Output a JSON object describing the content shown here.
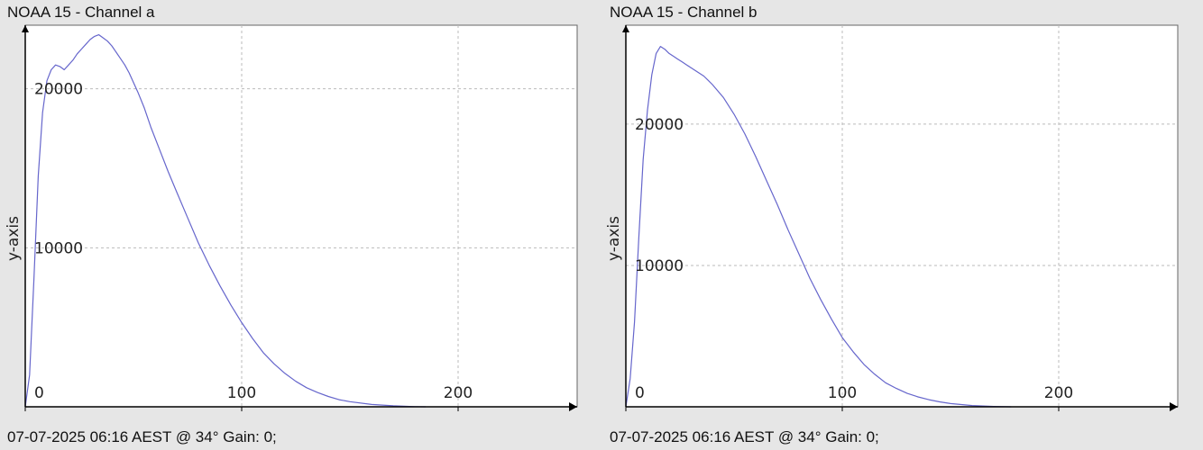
{
  "colors": {
    "background": "#e6e6e6",
    "plot_bg": "#ffffff",
    "line": "#6666cc",
    "grid": "#bbbbbb",
    "axis": "#000000"
  },
  "chart_data": [
    {
      "type": "line",
      "title": "NOAA 15 - Channel a",
      "footer": "07-07-2025 06:16 AEST @ 34° Gain: 0;",
      "xlabel": "",
      "ylabel": "y-axis",
      "xlim": [
        0,
        255
      ],
      "ylim": [
        0,
        24000
      ],
      "grid": true,
      "x_ticks": [
        0,
        100,
        200
      ],
      "y_ticks": [
        10000,
        20000
      ],
      "series": [
        {
          "x": [
            0,
            2,
            4,
            6,
            8,
            10,
            12,
            14,
            16,
            18,
            20,
            22,
            24,
            26,
            28,
            30,
            32,
            34,
            36,
            38,
            40,
            42,
            44,
            46,
            48,
            50,
            52,
            55,
            58,
            62,
            66,
            70,
            75,
            80,
            85,
            90,
            95,
            100,
            105,
            110,
            115,
            120,
            125,
            130,
            135,
            140,
            145,
            150,
            160,
            170,
            180,
            185
          ],
          "y": [
            0,
            2000,
            8000,
            14500,
            18500,
            20500,
            21200,
            21500,
            21400,
            21200,
            21500,
            21800,
            22200,
            22500,
            22800,
            23100,
            23300,
            23400,
            23200,
            23000,
            22700,
            22300,
            21900,
            21500,
            21000,
            20400,
            19800,
            18800,
            17600,
            16200,
            14800,
            13500,
            11900,
            10300,
            8900,
            7600,
            6400,
            5300,
            4300,
            3400,
            2700,
            2100,
            1600,
            1200,
            900,
            650,
            450,
            320,
            150,
            60,
            10,
            0
          ]
        }
      ]
    },
    {
      "type": "line",
      "title": "NOAA 15 - Channel b",
      "footer": "07-07-2025 06:16 AEST @ 34° Gain: 0;",
      "xlabel": "",
      "ylabel": "y-axis",
      "xlim": [
        0,
        255
      ],
      "ylim": [
        0,
        27000
      ],
      "grid": true,
      "x_ticks": [
        0,
        100,
        200
      ],
      "y_ticks": [
        10000,
        20000
      ],
      "series": [
        {
          "x": [
            0,
            2,
            4,
            6,
            8,
            10,
            12,
            14,
            16,
            18,
            20,
            22,
            24,
            26,
            28,
            30,
            32,
            34,
            36,
            38,
            40,
            45,
            50,
            55,
            60,
            65,
            70,
            75,
            80,
            85,
            90,
            95,
            100,
            105,
            110,
            115,
            120,
            125,
            130,
            135,
            140,
            145,
            150,
            160,
            170,
            178
          ],
          "y": [
            0,
            2000,
            6000,
            12000,
            17500,
            21000,
            23500,
            25000,
            25500,
            25300,
            25000,
            24800,
            24600,
            24400,
            24200,
            24000,
            23800,
            23600,
            23400,
            23100,
            22800,
            21900,
            20700,
            19300,
            17700,
            16000,
            14300,
            12500,
            10800,
            9100,
            7600,
            6200,
            4900,
            3900,
            3000,
            2300,
            1700,
            1300,
            950,
            700,
            500,
            350,
            230,
            90,
            25,
            0
          ]
        }
      ]
    }
  ]
}
